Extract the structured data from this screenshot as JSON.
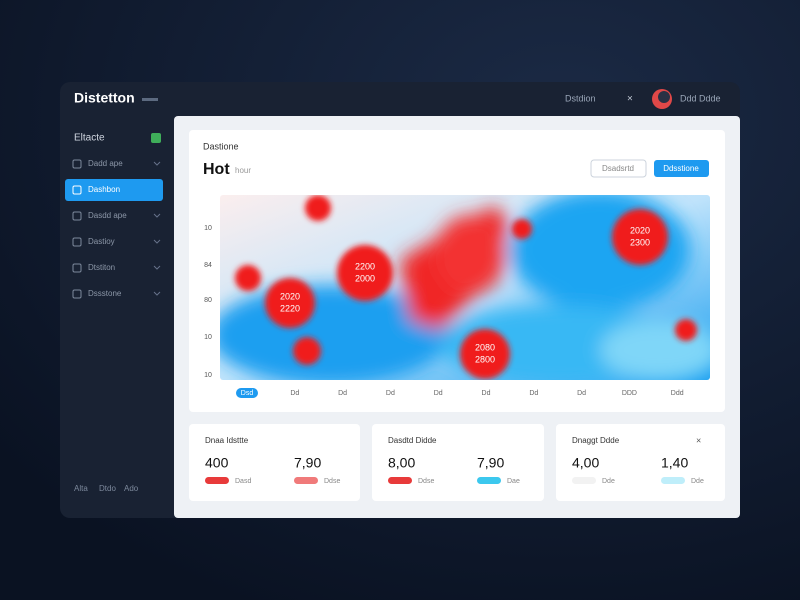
{
  "header": {
    "title": "Distetton",
    "menu": "Dstdion",
    "user": "Ddd Ddde"
  },
  "sidebar": {
    "title": "Eltacte",
    "items": [
      "Dadd ape",
      "Dashbon",
      "Dasdd ape",
      "Dastioy",
      "Dtstiton",
      "Dssstone"
    ],
    "footer": [
      "Alta",
      "Dtdo",
      "Ado"
    ]
  },
  "chart": {
    "label": "Dastione",
    "title": "Hot",
    "subtitle": "hour",
    "buttons": [
      "Dsadsrtd",
      "Ddsstione"
    ],
    "y_labels": [
      "10",
      "84",
      "80",
      "10",
      "10"
    ],
    "x_labels": [
      "Dsd",
      "Dd",
      "Dd",
      "Dd",
      "Dd",
      "Dd",
      "Dd",
      "Dd",
      "DDD",
      "Ddd"
    ],
    "annotations": [
      [
        "2020",
        "2300"
      ],
      [
        "2200",
        "2000"
      ],
      [
        "2020",
        "2220"
      ],
      [
        "2080",
        "2800"
      ]
    ]
  },
  "cards": [
    {
      "title": "Dnaa Idsttte",
      "stats": [
        {
          "value": "400",
          "label": "Dasd"
        },
        {
          "value": "7,90",
          "label": "Ddse"
        }
      ]
    },
    {
      "title": "Dasdtd Didde",
      "stats": [
        {
          "value": "8,00",
          "label": "Ddse"
        },
        {
          "value": "7,90",
          "label": "Dae"
        }
      ]
    },
    {
      "title": "Dnaggt Ddde",
      "stats": [
        {
          "value": "4,00",
          "label": "Dde"
        },
        {
          "value": "1,40",
          "label": "Dde"
        }
      ]
    }
  ]
}
